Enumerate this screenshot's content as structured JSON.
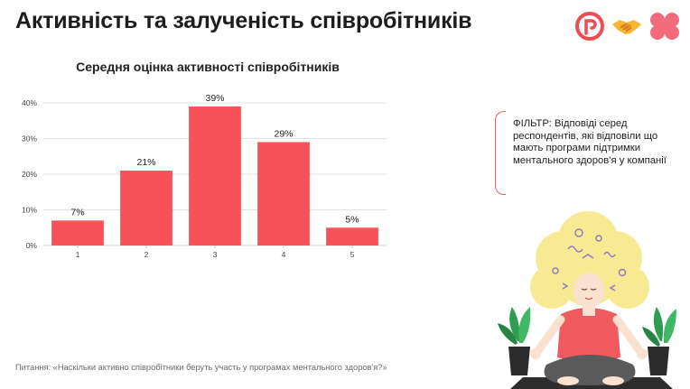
{
  "page": {
    "title": "Активність та залученість співробітників",
    "filter_text": "ФІЛЬТР: Відповіді серед респондентів, які відповіли що мають програми підтримки ментального здоров'я у компанії",
    "footnote": "Питання: «Наскільки активно співробітники беруть участь у програмах ментального здоров'я?»"
  },
  "colors": {
    "bar": "#f65258",
    "accent": "#f05a5f",
    "grid": "#e3e3e3",
    "brand_red": "#ef4b52",
    "brand_pink": "#f26b7d"
  },
  "icons": [
    "r-logo-icon",
    "handshake-icon",
    "flower-logo-icon"
  ],
  "chart_data": {
    "type": "bar",
    "title": "Середня оцінка активності співробітників",
    "categories": [
      "1",
      "2",
      "3",
      "4",
      "5"
    ],
    "values": [
      7,
      21,
      39,
      29,
      5
    ],
    "data_labels": [
      "7%",
      "21%",
      "39%",
      "29%",
      "5%"
    ],
    "yticks": [
      "0%",
      "10%",
      "20%",
      "30%",
      "40%"
    ],
    "ylim": [
      0,
      40
    ],
    "grid": true,
    "xlabel": "",
    "ylabel": ""
  }
}
